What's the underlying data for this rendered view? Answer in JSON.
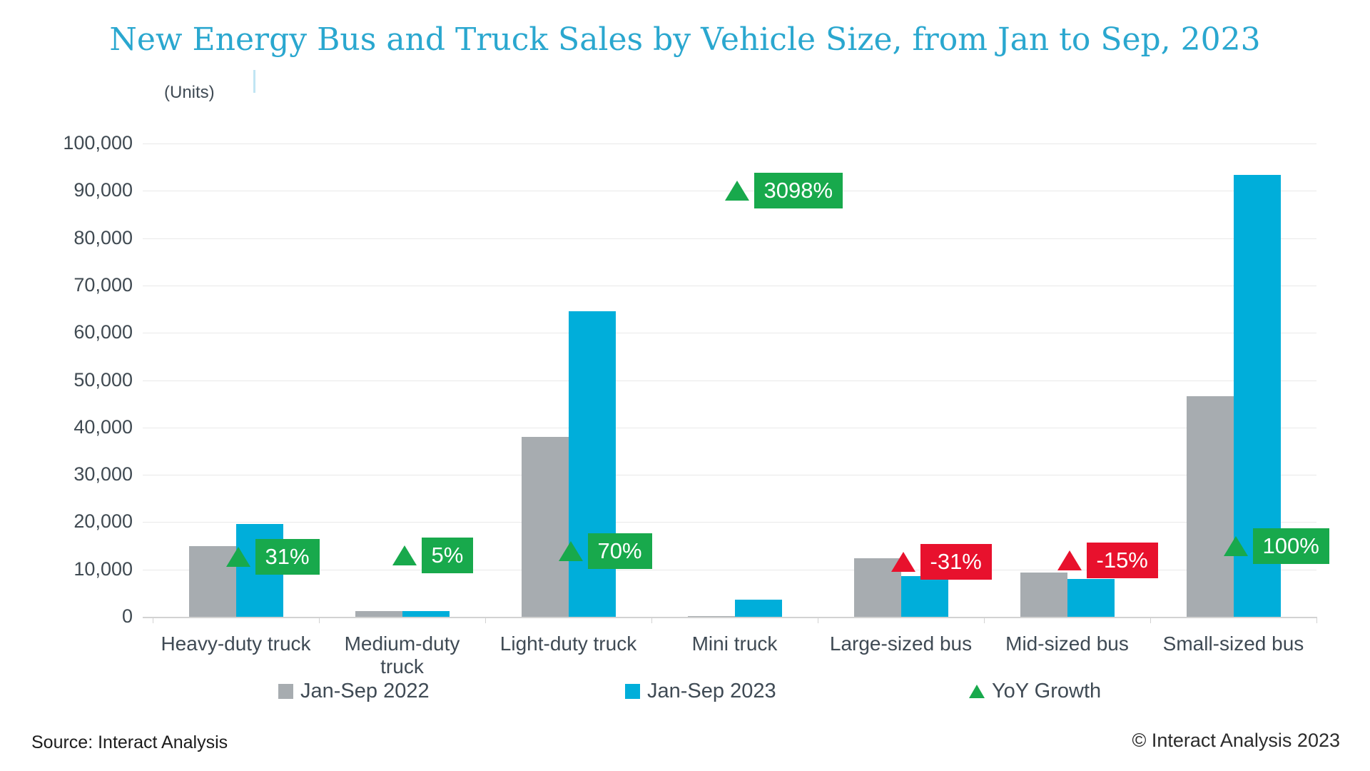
{
  "header": {
    "title_color": "#2aa7cf"
  },
  "chart_data": {
    "type": "bar",
    "title": "New Energy Bus and Truck Sales by Vehicle Size, from Jan to Sep, 2023",
    "ylabel": "(Units)",
    "categories": [
      "Heavy-duty truck",
      "Medium-duty\ntruck",
      "Light-duty truck",
      "Mini truck",
      "Large-sized bus",
      "Mid-sized bus",
      "Small-sized bus"
    ],
    "series": [
      {
        "name": "Jan-Sep 2022",
        "color": "#a7acb0",
        "values": [
          15000,
          1200,
          38000,
          115,
          12400,
          9400,
          46600
        ]
      },
      {
        "name": "Jan-Sep 2023",
        "color": "#00aeda",
        "values": [
          19650,
          1260,
          64600,
          3680,
          8550,
          8000,
          93300
        ]
      }
    ],
    "yoy_growth": {
      "name": "YoY Growth",
      "labels": [
        "31%",
        "5%",
        "70%",
        "3098%",
        "-31%",
        "-15%",
        "100%"
      ],
      "positive": [
        true,
        true,
        true,
        true,
        false,
        false,
        true
      ],
      "positive_color": "#18a94c",
      "negative_color": "#e8112d",
      "annotation_levels": [
        12700,
        13000,
        13900,
        90000,
        11600,
        11900,
        14900
      ]
    },
    "ylim": [
      0,
      100000
    ],
    "ytick_step": 10000,
    "ytick_labels": [
      "100,000",
      "90,000",
      "80,000",
      "70,000",
      "60,000",
      "50,000",
      "40,000",
      "30,000",
      "20,000",
      "10,000",
      "0"
    ],
    "grid": true,
    "legend_position": "bottom"
  },
  "footer": {
    "source": "Source: Interact Analysis",
    "copyright": "© Interact Analysis 2023"
  }
}
